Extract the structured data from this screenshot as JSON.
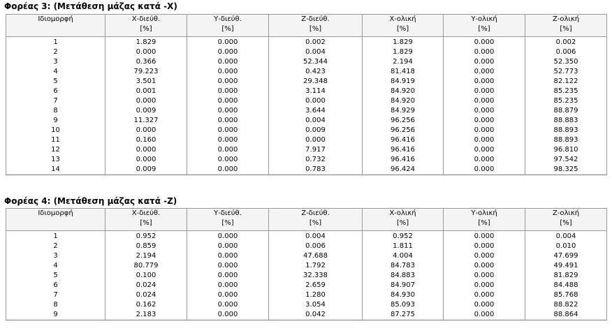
{
  "sections": [
    {
      "title": "Φορέας 3: (Μετάθεση μάζας κατά  -X)",
      "table": {
        "header": [
          [
            "Ιδιομορφή"
          ],
          [
            "Χ-διεύθ.",
            "[%]"
          ],
          [
            "Υ-διεύθ.",
            "[%]"
          ],
          [
            "Ζ-διεύθ.",
            "[%]"
          ],
          [
            "Χ-ολική",
            "[%]"
          ],
          [
            "Υ-ολική",
            "[%]"
          ],
          [
            "Ζ-ολική",
            "[%]"
          ]
        ],
        "rows": [
          [
            "1",
            "1.829",
            "0.000",
            "0.002",
            "1.829",
            "0.000",
            "0.002"
          ],
          [
            "2",
            "0.000",
            "0.000",
            "0.004",
            "1.829",
            "0.000",
            "0.006"
          ],
          [
            "3",
            "0.366",
            "0.000",
            "52.344",
            "2.194",
            "0.000",
            "52.350"
          ],
          [
            "4",
            "79.223",
            "0.000",
            "0.423",
            "81.418",
            "0.000",
            "52.773"
          ],
          [
            "5",
            "3.501",
            "0.000",
            "29.348",
            "84.919",
            "0.000",
            "82.122"
          ],
          [
            "6",
            "0.001",
            "0.000",
            "3.114",
            "84.920",
            "0.000",
            "85.235"
          ],
          [
            "7",
            "0.000",
            "0.000",
            "0.000",
            "84.920",
            "0.000",
            "85.235"
          ],
          [
            "8",
            "0.009",
            "0.000",
            "3.644",
            "84.929",
            "0.000",
            "88.879"
          ],
          [
            "9",
            "11.327",
            "0.000",
            "0.004",
            "96.256",
            "0.000",
            "88.883"
          ],
          [
            "10",
            "0.000",
            "0.000",
            "0.009",
            "96.256",
            "0.000",
            "88.893"
          ],
          [
            "11",
            "0.160",
            "0.000",
            "0.000",
            "96.416",
            "0.000",
            "88.893"
          ],
          [
            "12",
            "0.000",
            "0.000",
            "7.917",
            "96.416",
            "0.000",
            "96.810"
          ],
          [
            "13",
            "0.000",
            "0.000",
            "0.732",
            "96.416",
            "0.000",
            "97.542"
          ],
          [
            "14",
            "0.009",
            "0.000",
            "0.783",
            "96.424",
            "0.000",
            "98.325"
          ]
        ]
      }
    },
    {
      "title": "Φορέας 4: (Μετάθεση μάζας κατά  -Z)",
      "table": {
        "header": [
          [
            "Ιδιομορφή"
          ],
          [
            "Χ-διεύθ.",
            "[%]"
          ],
          [
            "Υ-διεύθ.",
            "[%]"
          ],
          [
            "Ζ-διεύθ.",
            "[%]"
          ],
          [
            "Χ-ολική",
            "[%]"
          ],
          [
            "Υ-ολική",
            "[%]"
          ],
          [
            "Ζ-ολική",
            "[%]"
          ]
        ],
        "rows": [
          [
            "1",
            "0.952",
            "0.000",
            "0.004",
            "0.952",
            "0.000",
            "0.004"
          ],
          [
            "2",
            "0.859",
            "0.000",
            "0.006",
            "1.811",
            "0.000",
            "0.010"
          ],
          [
            "3",
            "2.194",
            "0.000",
            "47.688",
            "4.004",
            "0.000",
            "47.699"
          ],
          [
            "4",
            "80.779",
            "0.000",
            "1.792",
            "84.783",
            "0.000",
            "49.491"
          ],
          [
            "5",
            "0.100",
            "0.000",
            "32.338",
            "84.883",
            "0.000",
            "81.829"
          ],
          [
            "6",
            "0.024",
            "0.000",
            "2.659",
            "84.907",
            "0.000",
            "84.488"
          ],
          [
            "7",
            "0.024",
            "0.000",
            "1.280",
            "84.930",
            "0.000",
            "85.768"
          ],
          [
            "8",
            "0.162",
            "0.000",
            "3.054",
            "85.093",
            "0.000",
            "88.822"
          ],
          [
            "9",
            "2.183",
            "0.000",
            "0.042",
            "87.275",
            "0.000",
            "88.864"
          ]
        ]
      }
    }
  ]
}
